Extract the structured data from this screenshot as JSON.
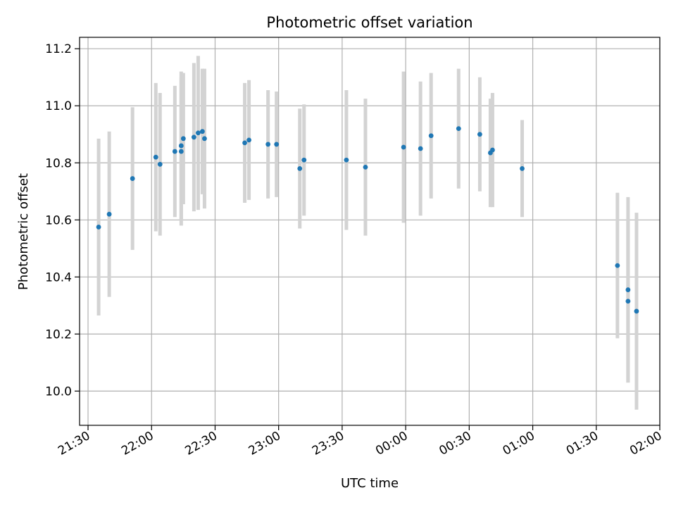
{
  "chart_data": {
    "type": "scatter",
    "title": "Photometric offset variation",
    "xlabel": "UTC time",
    "ylabel": "Photometric offset",
    "x_axis": "time",
    "x_start_date": "2000-01-01",
    "xlim": [
      "21:26",
      "02:00"
    ],
    "ylim": [
      9.88,
      11.24
    ],
    "xticks": [
      "21:30",
      "22:00",
      "22:30",
      "23:00",
      "23:30",
      "00:00",
      "00:30",
      "01:00",
      "01:30",
      "02:00"
    ],
    "yticks": [
      10.0,
      10.2,
      10.4,
      10.6,
      10.8,
      11.0,
      11.2
    ],
    "grid": true,
    "colors": {
      "marker": "#1f77b4",
      "errorbar": "#d3d3d3",
      "grid": "#b0b0b0"
    },
    "series": [
      {
        "name": "",
        "points": [
          {
            "x": "21:35",
            "y": 10.575,
            "yerr": 0.31
          },
          {
            "x": "21:40",
            "y": 10.62,
            "yerr": 0.29
          },
          {
            "x": "21:51",
            "y": 10.745,
            "yerr": 0.25
          },
          {
            "x": "22:02",
            "y": 10.82,
            "yerr": 0.26
          },
          {
            "x": "22:04",
            "y": 10.795,
            "yerr": 0.25
          },
          {
            "x": "22:11",
            "y": 10.84,
            "yerr": 0.23
          },
          {
            "x": "22:14",
            "y": 10.84,
            "yerr": 0.26
          },
          {
            "x": "22:14",
            "y": 10.86,
            "yerr": 0.26
          },
          {
            "x": "22:15",
            "y": 10.885,
            "yerr": 0.23
          },
          {
            "x": "22:20",
            "y": 10.89,
            "yerr": 0.26
          },
          {
            "x": "22:22",
            "y": 10.905,
            "yerr": 0.27
          },
          {
            "x": "22:24",
            "y": 10.91,
            "yerr": 0.22
          },
          {
            "x": "22:25",
            "y": 10.885,
            "yerr": 0.245
          },
          {
            "x": "22:44",
            "y": 10.87,
            "yerr": 0.21
          },
          {
            "x": "22:46",
            "y": 10.88,
            "yerr": 0.21
          },
          {
            "x": "22:55",
            "y": 10.865,
            "yerr": 0.19
          },
          {
            "x": "22:59",
            "y": 10.865,
            "yerr": 0.185
          },
          {
            "x": "23:10",
            "y": 10.78,
            "yerr": 0.21
          },
          {
            "x": "23:12",
            "y": 10.81,
            "yerr": 0.195
          },
          {
            "x": "23:32",
            "y": 10.81,
            "yerr": 0.245
          },
          {
            "x": "23:41",
            "y": 10.785,
            "yerr": 0.24
          },
          {
            "x": "23:59",
            "y": 10.855,
            "yerr": 0.265
          },
          {
            "x": "00:07",
            "y": 10.85,
            "yerr": 0.235
          },
          {
            "x": "00:12",
            "y": 10.895,
            "yerr": 0.22
          },
          {
            "x": "00:25",
            "y": 10.92,
            "yerr": 0.21
          },
          {
            "x": "00:35",
            "y": 10.9,
            "yerr": 0.2
          },
          {
            "x": "00:40",
            "y": 10.835,
            "yerr": 0.19
          },
          {
            "x": "00:41",
            "y": 10.845,
            "yerr": 0.2
          },
          {
            "x": "00:55",
            "y": 10.78,
            "yerr": 0.17
          },
          {
            "x": "01:40",
            "y": 10.44,
            "yerr": 0.255
          },
          {
            "x": "01:45",
            "y": 10.355,
            "yerr": 0.325
          },
          {
            "x": "01:45",
            "y": 10.315,
            "yerr": 0.285
          },
          {
            "x": "01:49",
            "y": 10.28,
            "yerr": 0.345
          }
        ]
      }
    ]
  }
}
